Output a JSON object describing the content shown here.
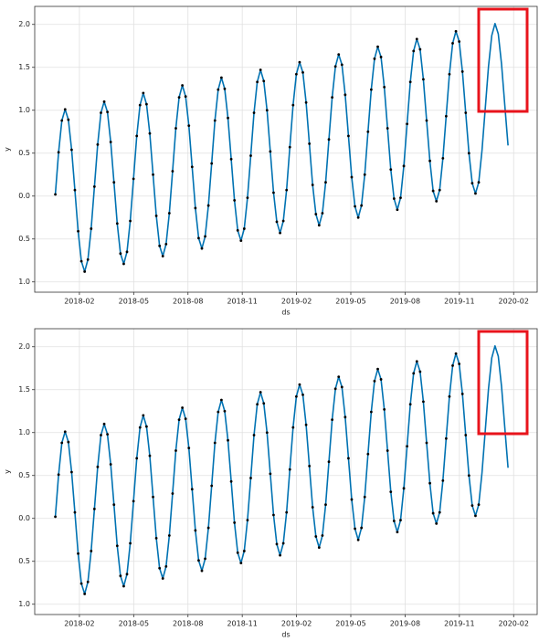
{
  "chart_data": [
    {
      "type": "line",
      "xlabel": "ds",
      "ylabel": "y",
      "grid": true,
      "xlim": [
        -1.47,
        26.3
      ],
      "ylim": [
        -1.12,
        2.21
      ],
      "xticks": [
        {
          "value": 1,
          "label": "2018-02"
        },
        {
          "value": 4,
          "label": "2018-05"
        },
        {
          "value": 7,
          "label": "2018-08"
        },
        {
          "value": 10,
          "label": "2018-11"
        },
        {
          "value": 13,
          "label": "2019-02"
        },
        {
          "value": 16,
          "label": "2019-05"
        },
        {
          "value": 19,
          "label": "2019-08"
        },
        {
          "value": 22,
          "label": "2019-11"
        },
        {
          "value": 25,
          "label": "2020-02"
        }
      ],
      "yticks": [
        {
          "value": -1,
          "label": "1.0"
        },
        {
          "value": -0.5,
          "label": "0.5"
        },
        {
          "value": 0,
          "label": "0.0"
        },
        {
          "value": 0.5,
          "label": "0.5"
        },
        {
          "value": 1,
          "label": "1.0"
        },
        {
          "value": 1.5,
          "label": "1.5"
        },
        {
          "value": 2,
          "label": "2.0"
        }
      ],
      "x": [
        -0.33,
        -0.15,
        0.03,
        0.21,
        0.39,
        0.57,
        0.75,
        0.93,
        1.11,
        1.29,
        1.47,
        1.65,
        1.83,
        2.01,
        2.19,
        2.37,
        2.55,
        2.73,
        2.91,
        3.09,
        3.27,
        3.45,
        3.63,
        3.81,
        3.99,
        4.17,
        4.35,
        4.53,
        4.71,
        4.89,
        5.07,
        5.25,
        5.43,
        5.61,
        5.79,
        5.97,
        6.15,
        6.33,
        6.51,
        6.69,
        6.87,
        7.05,
        7.23,
        7.41,
        7.59,
        7.77,
        7.95,
        8.13,
        8.31,
        8.49,
        8.67,
        8.85,
        9.03,
        9.21,
        9.39,
        9.57,
        9.75,
        9.93,
        10.11,
        10.29,
        10.47,
        10.65,
        10.83,
        11.01,
        11.19,
        11.37,
        11.55,
        11.73,
        11.91,
        12.09,
        12.27,
        12.45,
        12.63,
        12.81,
        12.99,
        13.17,
        13.35,
        13.53,
        13.71,
        13.89,
        14.07,
        14.25,
        14.43,
        14.61,
        14.79,
        14.97,
        15.15,
        15.33,
        15.51,
        15.69,
        15.87,
        16.05,
        16.23,
        16.41,
        16.59,
        16.77,
        16.95,
        17.13,
        17.31,
        17.49,
        17.67,
        17.85,
        18.03,
        18.21,
        18.39,
        18.57,
        18.75,
        18.93,
        19.11,
        19.29,
        19.47,
        19.65,
        19.83,
        20.01,
        20.19,
        20.37,
        20.55,
        20.73,
        20.91,
        21.09,
        21.27,
        21.45,
        21.63,
        21.81,
        21.99,
        22.17,
        22.35,
        22.53,
        22.71,
        22.89,
        23.07,
        23.25,
        23.43,
        23.61,
        23.79,
        23.97,
        24.15,
        24.33,
        24.51,
        24.69
      ],
      "series": [
        {
          "mode": "markers",
          "color": "#000000",
          "values": [
            0.02,
            0.51,
            0.88,
            1.01,
            0.89,
            0.54,
            0.07,
            -0.41,
            -0.76,
            -0.88,
            -0.74,
            -0.38,
            0.11,
            0.6,
            0.97,
            1.1,
            0.98,
            0.63,
            0.16,
            -0.32,
            -0.67,
            -0.79,
            -0.65,
            -0.29,
            0.2,
            0.7,
            1.06,
            1.2,
            1.07,
            0.73,
            0.25,
            -0.23,
            -0.58,
            -0.7,
            -0.56,
            -0.2,
            0.29,
            0.79,
            1.15,
            1.29,
            1.16,
            0.82,
            0.34,
            -0.14,
            -0.49,
            -0.61,
            -0.47,
            -0.11,
            0.38,
            0.88,
            1.24,
            1.38,
            1.25,
            0.91,
            0.43,
            -0.05,
            -0.4,
            -0.52,
            -0.38,
            -0.02,
            0.47,
            0.97,
            1.33,
            1.47,
            1.34,
            1.0,
            0.52,
            0.04,
            -0.3,
            -0.43,
            -0.29,
            0.07,
            0.57,
            1.06,
            1.42,
            1.56,
            1.44,
            1.09,
            0.61,
            0.13,
            -0.21,
            -0.34,
            -0.2,
            0.16,
            0.66,
            1.15,
            1.51,
            1.65,
            1.53,
            1.18,
            0.7,
            0.22,
            -0.12,
            -0.25,
            -0.11,
            0.25,
            0.75,
            1.24,
            1.6,
            1.74,
            1.62,
            1.27,
            0.79,
            0.31,
            -0.03,
            -0.16,
            -0.02,
            0.35,
            0.84,
            1.33,
            1.69,
            1.83,
            1.71,
            1.36,
            0.88,
            0.41,
            0.06,
            -0.06,
            0.07,
            0.44,
            0.93,
            1.42,
            1.78,
            1.92,
            1.8,
            1.45,
            0.97,
            0.5,
            0.15,
            0.03,
            0.16,
            null,
            null,
            null,
            null,
            null,
            null,
            null,
            null,
            null
          ]
        },
        {
          "mode": "lines",
          "color": "#0072b2",
          "values": [
            0.02,
            0.51,
            0.88,
            1.01,
            0.89,
            0.54,
            0.07,
            -0.41,
            -0.76,
            -0.88,
            -0.74,
            -0.38,
            0.11,
            0.6,
            0.97,
            1.1,
            0.98,
            0.63,
            0.16,
            -0.32,
            -0.67,
            -0.79,
            -0.65,
            -0.29,
            0.2,
            0.7,
            1.06,
            1.2,
            1.07,
            0.73,
            0.25,
            -0.23,
            -0.58,
            -0.7,
            -0.56,
            -0.2,
            0.29,
            0.79,
            1.15,
            1.29,
            1.16,
            0.82,
            0.34,
            -0.14,
            -0.49,
            -0.61,
            -0.47,
            -0.11,
            0.38,
            0.88,
            1.24,
            1.38,
            1.25,
            0.91,
            0.43,
            -0.05,
            -0.4,
            -0.52,
            -0.38,
            -0.02,
            0.47,
            0.97,
            1.33,
            1.47,
            1.34,
            1.0,
            0.52,
            0.04,
            -0.3,
            -0.43,
            -0.29,
            0.07,
            0.57,
            1.06,
            1.42,
            1.56,
            1.44,
            1.09,
            0.61,
            0.13,
            -0.21,
            -0.34,
            -0.2,
            0.16,
            0.66,
            1.15,
            1.51,
            1.65,
            1.53,
            1.18,
            0.7,
            0.22,
            -0.12,
            -0.25,
            -0.11,
            0.25,
            0.75,
            1.24,
            1.6,
            1.74,
            1.62,
            1.27,
            0.79,
            0.31,
            -0.03,
            -0.16,
            -0.02,
            0.35,
            0.84,
            1.33,
            1.69,
            1.83,
            1.71,
            1.36,
            0.88,
            0.41,
            0.06,
            -0.06,
            0.07,
            0.44,
            0.93,
            1.42,
            1.78,
            1.92,
            1.8,
            1.45,
            0.97,
            0.5,
            0.15,
            0.03,
            0.16,
            0.53,
            1.02,
            1.51,
            1.87,
            2.01,
            1.89,
            1.54,
            1.06,
            0.59
          ]
        }
      ]
    },
    {
      "type": "line",
      "xlabel": "ds",
      "ylabel": "y",
      "grid": true,
      "xlim": [
        -1.47,
        26.3
      ],
      "ylim": [
        -1.12,
        2.21
      ],
      "xticks": [
        {
          "value": 1,
          "label": "2018-02"
        },
        {
          "value": 4,
          "label": "2018-05"
        },
        {
          "value": 7,
          "label": "2018-08"
        },
        {
          "value": 10,
          "label": "2018-11"
        },
        {
          "value": 13,
          "label": "2019-02"
        },
        {
          "value": 16,
          "label": "2019-05"
        },
        {
          "value": 19,
          "label": "2019-08"
        },
        {
          "value": 22,
          "label": "2019-11"
        },
        {
          "value": 25,
          "label": "2020-02"
        }
      ],
      "yticks": [
        {
          "value": -1,
          "label": "1.0"
        },
        {
          "value": -0.5,
          "label": "0.5"
        },
        {
          "value": 0,
          "label": "0.0"
        },
        {
          "value": 0.5,
          "label": "0.5"
        },
        {
          "value": 1,
          "label": "1.0"
        },
        {
          "value": 1.5,
          "label": "1.5"
        },
        {
          "value": 2,
          "label": "2.0"
        }
      ],
      "x": [
        -0.33,
        -0.15,
        0.03,
        0.21,
        0.39,
        0.57,
        0.75,
        0.93,
        1.11,
        1.29,
        1.47,
        1.65,
        1.83,
        2.01,
        2.19,
        2.37,
        2.55,
        2.73,
        2.91,
        3.09,
        3.27,
        3.45,
        3.63,
        3.81,
        3.99,
        4.17,
        4.35,
        4.53,
        4.71,
        4.89,
        5.07,
        5.25,
        5.43,
        5.61,
        5.79,
        5.97,
        6.15,
        6.33,
        6.51,
        6.69,
        6.87,
        7.05,
        7.23,
        7.41,
        7.59,
        7.77,
        7.95,
        8.13,
        8.31,
        8.49,
        8.67,
        8.85,
        9.03,
        9.21,
        9.39,
        9.57,
        9.75,
        9.93,
        10.11,
        10.29,
        10.47,
        10.65,
        10.83,
        11.01,
        11.19,
        11.37,
        11.55,
        11.73,
        11.91,
        12.09,
        12.27,
        12.45,
        12.63,
        12.81,
        12.99,
        13.17,
        13.35,
        13.53,
        13.71,
        13.89,
        14.07,
        14.25,
        14.43,
        14.61,
        14.79,
        14.97,
        15.15,
        15.33,
        15.51,
        15.69,
        15.87,
        16.05,
        16.23,
        16.41,
        16.59,
        16.77,
        16.95,
        17.13,
        17.31,
        17.49,
        17.67,
        17.85,
        18.03,
        18.21,
        18.39,
        18.57,
        18.75,
        18.93,
        19.11,
        19.29,
        19.47,
        19.65,
        19.83,
        20.01,
        20.19,
        20.37,
        20.55,
        20.73,
        20.91,
        21.09,
        21.27,
        21.45,
        21.63,
        21.81,
        21.99,
        22.17,
        22.35,
        22.53,
        22.71,
        22.89,
        23.07,
        23.25,
        23.43,
        23.61,
        23.79,
        23.97,
        24.15,
        24.33,
        24.51,
        24.69
      ],
      "series": [
        {
          "mode": "markers",
          "color": "#000000",
          "values": [
            0.02,
            0.51,
            0.88,
            1.01,
            0.89,
            0.54,
            0.07,
            -0.41,
            -0.76,
            -0.88,
            -0.74,
            -0.38,
            0.11,
            0.6,
            0.97,
            1.1,
            0.98,
            0.63,
            0.16,
            -0.32,
            -0.67,
            -0.79,
            -0.65,
            -0.29,
            0.2,
            0.7,
            1.06,
            1.2,
            1.07,
            0.73,
            0.25,
            -0.23,
            -0.58,
            -0.7,
            -0.56,
            -0.2,
            0.29,
            0.79,
            1.15,
            1.29,
            1.16,
            0.82,
            0.34,
            -0.14,
            -0.49,
            -0.61,
            -0.47,
            -0.11,
            0.38,
            0.88,
            1.24,
            1.38,
            1.25,
            0.91,
            0.43,
            -0.05,
            -0.4,
            -0.52,
            -0.38,
            -0.02,
            0.47,
            0.97,
            1.33,
            1.47,
            1.34,
            1.0,
            0.52,
            0.04,
            -0.3,
            -0.43,
            -0.29,
            0.07,
            0.57,
            1.06,
            1.42,
            1.56,
            1.44,
            1.09,
            0.61,
            0.13,
            -0.21,
            -0.34,
            -0.2,
            0.16,
            0.66,
            1.15,
            1.51,
            1.65,
            1.53,
            1.18,
            0.7,
            0.22,
            -0.12,
            -0.25,
            -0.11,
            0.25,
            0.75,
            1.24,
            1.6,
            1.74,
            1.62,
            1.27,
            0.79,
            0.31,
            -0.03,
            -0.16,
            -0.02,
            0.35,
            0.84,
            1.33,
            1.69,
            1.83,
            1.71,
            1.36,
            0.88,
            0.41,
            0.06,
            -0.06,
            0.07,
            0.44,
            0.93,
            1.42,
            1.78,
            1.92,
            1.8,
            1.45,
            0.97,
            0.5,
            0.15,
            0.03,
            0.16,
            null,
            null,
            null,
            null,
            null,
            null,
            null,
            null,
            null
          ]
        },
        {
          "mode": "lines",
          "color": "#0072b2",
          "values": [
            0.02,
            0.51,
            0.88,
            1.01,
            0.89,
            0.54,
            0.07,
            -0.41,
            -0.76,
            -0.88,
            -0.74,
            -0.38,
            0.11,
            0.6,
            0.97,
            1.1,
            0.98,
            0.63,
            0.16,
            -0.32,
            -0.67,
            -0.79,
            -0.65,
            -0.29,
            0.2,
            0.7,
            1.06,
            1.2,
            1.07,
            0.73,
            0.25,
            -0.23,
            -0.58,
            -0.7,
            -0.56,
            -0.2,
            0.29,
            0.79,
            1.15,
            1.29,
            1.16,
            0.82,
            0.34,
            -0.14,
            -0.49,
            -0.61,
            -0.47,
            -0.11,
            0.38,
            0.88,
            1.24,
            1.38,
            1.25,
            0.91,
            0.43,
            -0.05,
            -0.4,
            -0.52,
            -0.38,
            -0.02,
            0.47,
            0.97,
            1.33,
            1.47,
            1.34,
            1.0,
            0.52,
            0.04,
            -0.3,
            -0.43,
            -0.29,
            0.07,
            0.57,
            1.06,
            1.42,
            1.56,
            1.44,
            1.09,
            0.61,
            0.13,
            -0.21,
            -0.34,
            -0.2,
            0.16,
            0.66,
            1.15,
            1.51,
            1.65,
            1.53,
            1.18,
            0.7,
            0.22,
            -0.12,
            -0.25,
            -0.11,
            0.25,
            0.75,
            1.24,
            1.6,
            1.74,
            1.62,
            1.27,
            0.79,
            0.31,
            -0.03,
            -0.16,
            -0.02,
            0.35,
            0.84,
            1.33,
            1.69,
            1.83,
            1.71,
            1.36,
            0.88,
            0.41,
            0.06,
            -0.06,
            0.07,
            0.44,
            0.93,
            1.42,
            1.78,
            1.92,
            1.8,
            1.45,
            0.97,
            0.5,
            0.15,
            0.03,
            0.16,
            0.53,
            1.02,
            1.51,
            1.87,
            2.01,
            1.89,
            1.54,
            1.06,
            0.59
          ]
        }
      ]
    }
  ]
}
